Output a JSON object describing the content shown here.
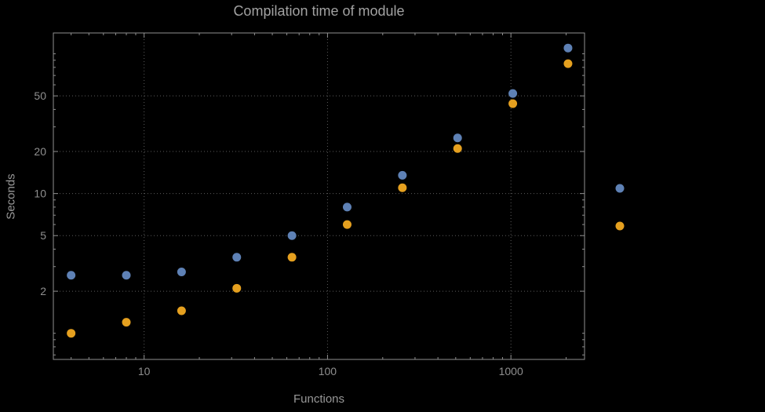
{
  "chart_data": {
    "type": "scatter",
    "title": "Compilation time of module",
    "xlabel": "Functions",
    "ylabel": "Seconds",
    "x_scale": "log",
    "y_scale": "log",
    "xlim": [
      3.2,
      2520
    ],
    "ylim": [
      0.65,
      141
    ],
    "x_ticks": [
      10,
      100,
      1000
    ],
    "y_ticks": [
      2,
      5,
      10,
      20,
      50
    ],
    "grid": "dotted",
    "x": [
      4,
      8,
      16,
      32,
      64,
      128,
      256,
      512,
      1024,
      2048
    ],
    "series": [
      {
        "name": "blue",
        "color": "#5e81b5",
        "values": [
          2.6,
          2.6,
          2.75,
          3.5,
          5.0,
          8.0,
          13.5,
          25,
          52,
          110
        ]
      },
      {
        "name": "orange",
        "color": "#e5a01f",
        "values": [
          1.0,
          1.2,
          1.45,
          2.1,
          3.5,
          6.0,
          11,
          21,
          44,
          85
        ]
      }
    ],
    "legend": {
      "position": "right-outside",
      "labels_visible": false
    }
  },
  "colors": {
    "background": "#000000",
    "frame": "#8f8f8f",
    "grid": "#5c5c5c",
    "tick_text": "#8f8f8f",
    "title_text": "#a2a2a2"
  }
}
